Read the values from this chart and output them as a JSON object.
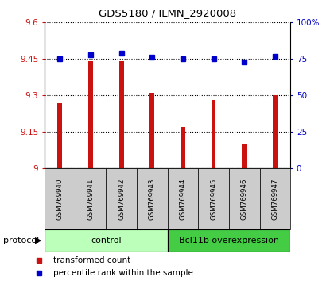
{
  "title": "GDS5180 / ILMN_2920008",
  "samples": [
    "GSM769940",
    "GSM769941",
    "GSM769942",
    "GSM769943",
    "GSM769944",
    "GSM769945",
    "GSM769946",
    "GSM769947"
  ],
  "bar_values": [
    9.27,
    9.44,
    9.44,
    9.31,
    9.17,
    9.28,
    9.1,
    9.3
  ],
  "percentile_values": [
    75,
    78,
    79,
    76,
    75,
    75,
    73,
    77
  ],
  "bar_bottom": 9.0,
  "ylim_left": [
    9.0,
    9.6
  ],
  "ylim_right": [
    0,
    100
  ],
  "yticks_left": [
    9.0,
    9.15,
    9.3,
    9.45,
    9.6
  ],
  "yticks_right": [
    0,
    25,
    50,
    75,
    100
  ],
  "ytick_labels_left": [
    "9",
    "9.15",
    "9.3",
    "9.45",
    "9.6"
  ],
  "ytick_labels_right": [
    "0",
    "25",
    "50",
    "75",
    "100%"
  ],
  "bar_color": "#cc1111",
  "dot_color": "#0000cc",
  "grid_color": "#000000",
  "control_color": "#bbffbb",
  "overexpression_color": "#44cc44",
  "label_box_color": "#cccccc",
  "control_label": "control",
  "overexpression_label": "Bcl11b overexpression",
  "protocol_label": "protocol",
  "legend_bar_label": "transformed count",
  "legend_dot_label": "percentile rank within the sample",
  "n_control": 4,
  "n_overexpression": 4,
  "bar_width": 0.15
}
